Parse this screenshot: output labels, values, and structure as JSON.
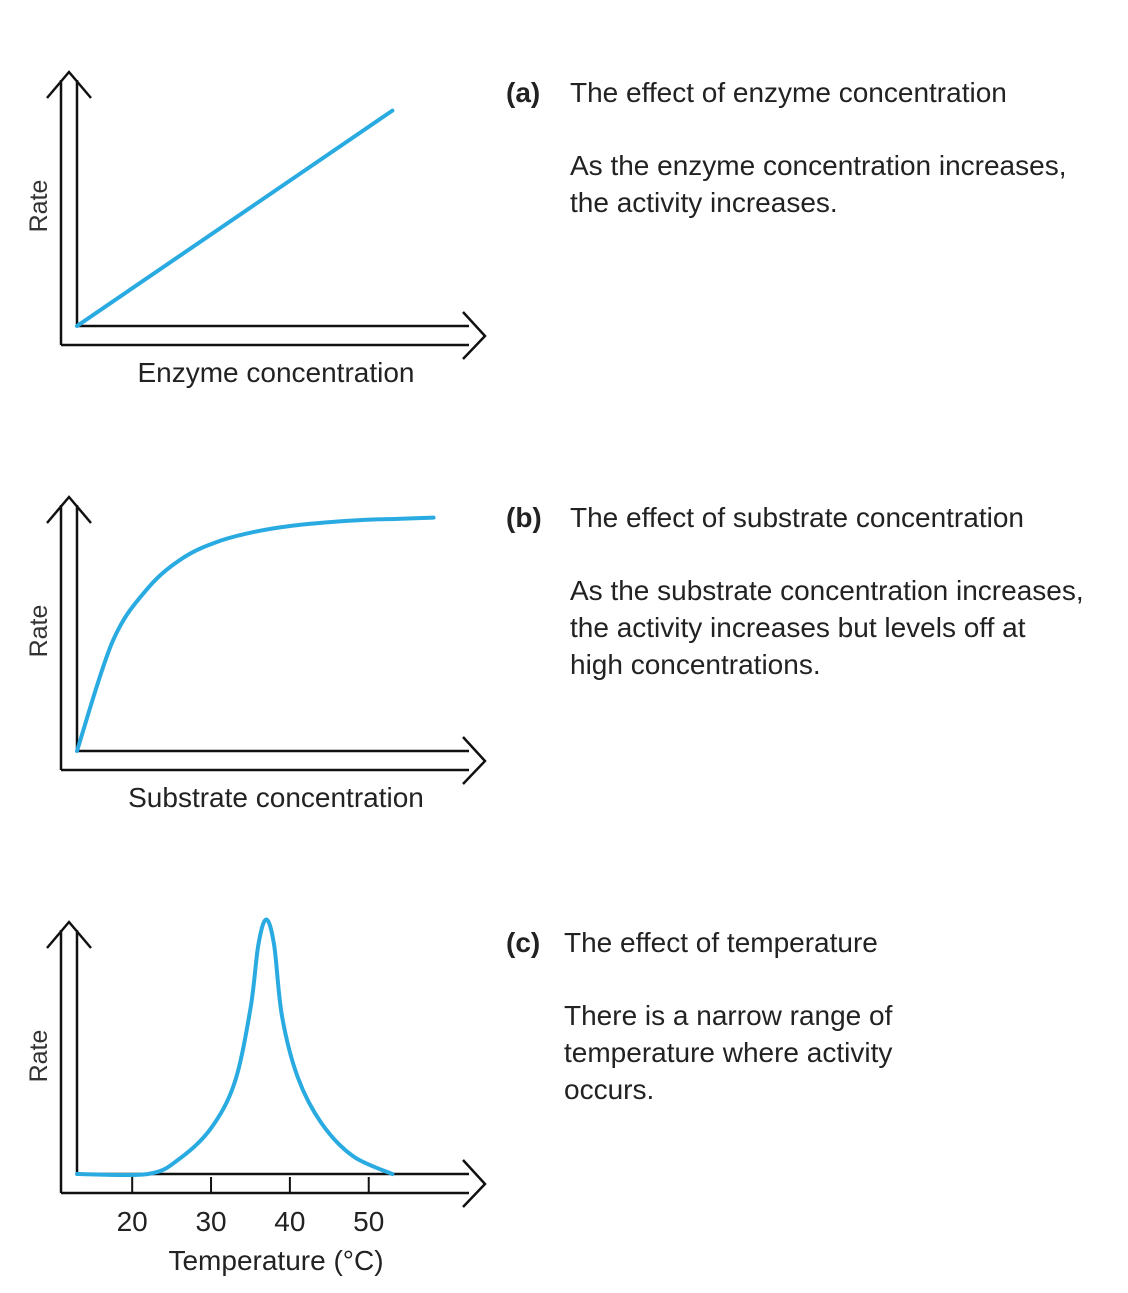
{
  "panels": [
    {
      "letter": "(a)",
      "title": "The effect of enzyme concentration",
      "description": [
        "As the enzyme concentration increases,",
        "the activity increases."
      ]
    },
    {
      "letter": "(b)",
      "title": "The effect of substrate concentration",
      "description": [
        "As the substrate concentration increases,",
        "the activity increases but levels off at",
        "high concentrations."
      ]
    },
    {
      "letter": "(c)",
      "title": "The effect of temperature",
      "description": [
        "There is a narrow range of",
        "temperature where activity",
        "occurs."
      ]
    }
  ],
  "chart_data": [
    {
      "type": "line",
      "title": "The effect of enzyme concentration",
      "xlabel": "Enzyme concentration",
      "ylabel": "Rate",
      "color": "#29abe2",
      "x": [
        0,
        1
      ],
      "y": [
        0,
        1
      ],
      "xlim": [
        0,
        1.3
      ],
      "ylim": [
        0,
        1.3
      ]
    },
    {
      "type": "line",
      "title": "The effect of substrate concentration",
      "xlabel": "Substrate concentration",
      "ylabel": "Rate",
      "color": "#29abe2",
      "x": [
        0,
        0.1,
        0.2,
        0.3,
        0.4,
        0.5,
        0.6,
        0.7,
        0.8,
        0.9,
        1.0
      ],
      "y": [
        0,
        0.47,
        0.7,
        0.83,
        0.9,
        0.94,
        0.965,
        0.98,
        0.99,
        0.995,
        1.0
      ],
      "xlim": [
        0,
        1.15
      ],
      "ylim": [
        0,
        1.2
      ]
    },
    {
      "type": "line",
      "title": "The effect of temperature",
      "xlabel": "Temperature (°C)",
      "ylabel": "Rate",
      "color": "#29abe2",
      "x": [
        13,
        22,
        26,
        30,
        33,
        35,
        36,
        37,
        38,
        39,
        41,
        44,
        48,
        53
      ],
      "y": [
        0,
        0,
        0.06,
        0.18,
        0.36,
        0.65,
        0.9,
        1.0,
        0.9,
        0.62,
        0.38,
        0.2,
        0.07,
        0
      ],
      "xticks": [
        20,
        30,
        40,
        50
      ],
      "xlim": [
        13,
        65
      ],
      "ylim": [
        0,
        1.1
      ]
    }
  ]
}
